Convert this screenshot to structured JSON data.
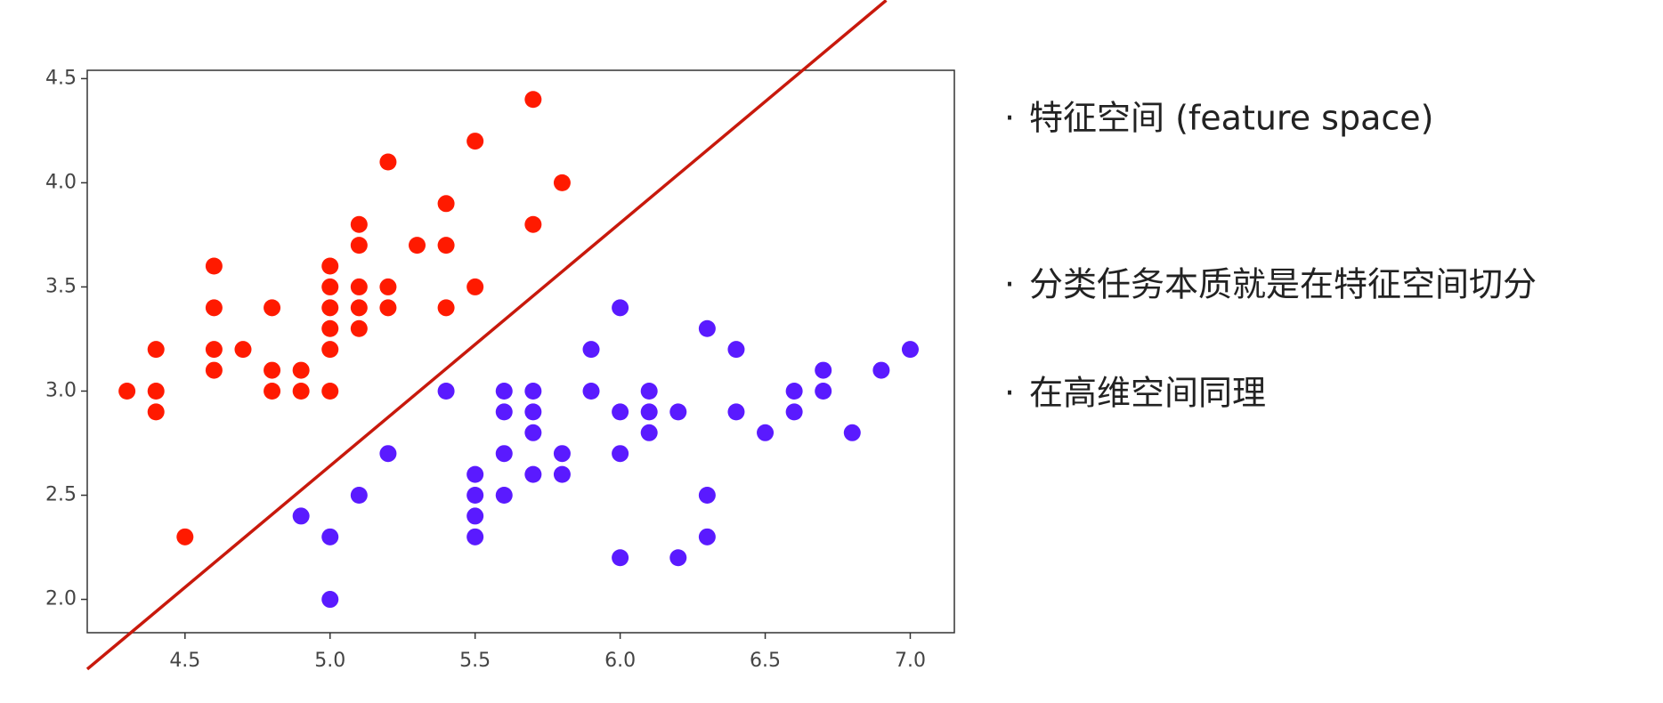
{
  "chart_data": {
    "type": "scatter",
    "xlim": [
      4.163,
      7.152
    ],
    "ylim": [
      1.84,
      4.54
    ],
    "xticks": [
      4.5,
      {
        "value": 5.0,
        "label": "5.0"
      },
      5.5,
      {
        "value": 6.0,
        "label": "6.0"
      },
      6.5,
      {
        "value": 7.0,
        "label": "7.0"
      }
    ],
    "yticks": [
      {
        "value": 2.0,
        "label": "2.0"
      },
      2.5,
      {
        "value": 3.0,
        "label": "3.0"
      },
      3.5,
      {
        "value": 4.0,
        "label": "4.0"
      },
      4.5
    ],
    "series": [
      {
        "type": "scatter",
        "color": "#ff1a00",
        "x": [
          4.3,
          4.4,
          4.4,
          4.4,
          4.5,
          4.6,
          4.6,
          4.6,
          4.6,
          4.7,
          4.8,
          4.8,
          4.8,
          4.9,
          4.9,
          5.0,
          5.0,
          5.0,
          5.0,
          5.0,
          5.0,
          5.1,
          5.1,
          5.1,
          5.1,
          5.1,
          5.2,
          5.2,
          5.2,
          5.3,
          5.4,
          5.4,
          5.4,
          5.5,
          5.5,
          5.7,
          5.7,
          5.8
        ],
        "values": [
          3.0,
          3.2,
          3.0,
          2.9,
          2.3,
          3.6,
          3.4,
          3.2,
          3.1,
          3.2,
          3.4,
          3.1,
          3.0,
          3.1,
          3.0,
          3.6,
          3.5,
          3.4,
          3.3,
          3.2,
          3.0,
          3.8,
          3.7,
          3.5,
          3.4,
          3.3,
          4.1,
          3.5,
          3.4,
          3.7,
          3.9,
          3.7,
          3.4,
          4.2,
          3.5,
          4.4,
          3.8,
          4.0
        ]
      },
      {
        "type": "scatter",
        "color": "#5a1aff",
        "x": [
          4.9,
          5.0,
          5.0,
          5.1,
          5.2,
          5.4,
          5.5,
          5.5,
          5.5,
          5.5,
          5.6,
          5.6,
          5.6,
          5.6,
          5.7,
          5.7,
          5.7,
          5.7,
          5.8,
          5.8,
          5.9,
          5.9,
          6.0,
          6.0,
          6.0,
          6.0,
          6.1,
          6.1,
          6.1,
          6.2,
          6.2,
          6.3,
          6.3,
          6.3,
          6.4,
          6.4,
          6.5,
          6.6,
          6.6,
          6.7,
          6.7,
          6.8,
          6.9,
          7.0
        ],
        "values": [
          2.4,
          2.3,
          2.0,
          2.5,
          2.7,
          3.0,
          2.6,
          2.5,
          2.4,
          2.3,
          3.0,
          2.9,
          2.7,
          2.5,
          3.0,
          2.9,
          2.8,
          2.6,
          2.7,
          2.6,
          3.2,
          3.0,
          3.4,
          2.9,
          2.7,
          2.2,
          3.0,
          2.9,
          2.8,
          2.9,
          2.2,
          3.3,
          2.5,
          2.3,
          3.2,
          2.9,
          2.8,
          3.0,
          2.9,
          3.1,
          3.0,
          2.8,
          3.1,
          3.2
        ]
      },
      {
        "type": "line",
        "color": "#c8190c",
        "x": [
          4.163,
          6.917
        ],
        "values": [
          1.665,
          4.876
        ]
      }
    ]
  },
  "bullets": [
    "特征空间 (feature space)",
    "分类任务本质就是在特征空间切分",
    "在高维空间同理"
  ]
}
